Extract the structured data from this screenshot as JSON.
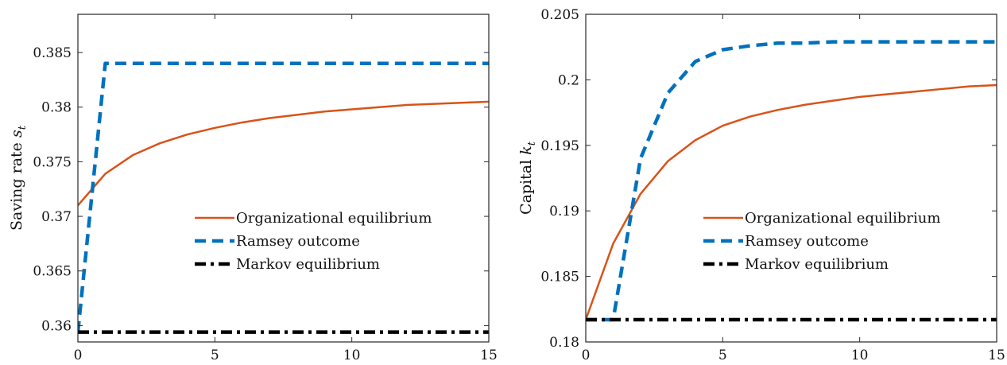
{
  "chart_data": [
    {
      "type": "line",
      "title": "",
      "xlabel": "",
      "ylabel": "Saving rate s",
      "ylabel_subscript": "t",
      "xlim": [
        0,
        15
      ],
      "ylim": [
        0.3585,
        0.3885
      ],
      "xticks": [
        0,
        5,
        10,
        15
      ],
      "xtick_labels": [
        "0",
        "5",
        "10",
        "15"
      ],
      "yticks": [
        0.36,
        0.365,
        0.37,
        0.375,
        0.38,
        0.385
      ],
      "ytick_labels": [
        "0.36",
        "0.365",
        "0.37",
        "0.375",
        "0.38",
        "0.385"
      ],
      "grid": false,
      "legend": "center-right",
      "series": [
        {
          "name": "Organizational equilibrium",
          "color": "#D95319",
          "style": "solid",
          "x": [
            0,
            1,
            2,
            3,
            4,
            5,
            6,
            7,
            8,
            9,
            10,
            11,
            12,
            13,
            14,
            15
          ],
          "values": [
            0.371,
            0.3739,
            0.3756,
            0.3767,
            0.3775,
            0.3781,
            0.3786,
            0.379,
            0.3793,
            0.3796,
            0.3798,
            0.38,
            0.3802,
            0.3803,
            0.3804,
            0.3805
          ]
        },
        {
          "name": "Ramsey outcome",
          "color": "#0072BD",
          "style": "dashed",
          "x": [
            0,
            1,
            2,
            3,
            4,
            5,
            6,
            7,
            8,
            9,
            10,
            11,
            12,
            13,
            14,
            15
          ],
          "values": [
            0.3594,
            0.384,
            0.384,
            0.384,
            0.384,
            0.384,
            0.384,
            0.384,
            0.384,
            0.384,
            0.384,
            0.384,
            0.384,
            0.384,
            0.384,
            0.384
          ]
        },
        {
          "name": "Markov equilibrium",
          "color": "#000000",
          "style": "dashdot",
          "x": [
            0,
            15
          ],
          "values": [
            0.3594,
            0.3594
          ]
        }
      ]
    },
    {
      "type": "line",
      "title": "",
      "xlabel": "",
      "ylabel": "Capital k",
      "ylabel_subscript": "t",
      "xlim": [
        0,
        15
      ],
      "ylim": [
        0.18,
        0.205
      ],
      "xticks": [
        0,
        5,
        10,
        15
      ],
      "xtick_labels": [
        "0",
        "5",
        "10",
        "15"
      ],
      "yticks": [
        0.18,
        0.185,
        0.19,
        0.195,
        0.2,
        0.205
      ],
      "ytick_labels": [
        "0.18",
        "0.185",
        "0.19",
        "0.195",
        "0.2",
        "0.205"
      ],
      "grid": false,
      "legend": "center-right",
      "series": [
        {
          "name": "Organizational equilibrium",
          "color": "#D95319",
          "style": "solid",
          "x": [
            0,
            1,
            2,
            3,
            4,
            5,
            6,
            7,
            8,
            9,
            10,
            11,
            12,
            13,
            14,
            15
          ],
          "values": [
            0.1817,
            0.1875,
            0.1913,
            0.1938,
            0.1954,
            0.1965,
            0.1972,
            0.1977,
            0.1981,
            0.1984,
            0.1987,
            0.1989,
            0.1991,
            0.1993,
            0.1995,
            0.1996
          ]
        },
        {
          "name": "Ramsey outcome",
          "color": "#0072BD",
          "style": "dashed",
          "x": [
            0,
            1,
            2,
            3,
            4,
            5,
            6,
            7,
            8,
            9,
            10,
            11,
            12,
            13,
            14,
            15
          ],
          "values": [
            0.1817,
            0.1817,
            0.194,
            0.199,
            0.2014,
            0.2023,
            0.2026,
            0.2028,
            0.2028,
            0.2029,
            0.2029,
            0.2029,
            0.2029,
            0.2029,
            0.2029,
            0.2029
          ]
        },
        {
          "name": "Markov equilibrium",
          "color": "#000000",
          "style": "dashdot",
          "x": [
            0,
            15
          ],
          "values": [
            0.1817,
            0.1817
          ]
        }
      ]
    }
  ]
}
